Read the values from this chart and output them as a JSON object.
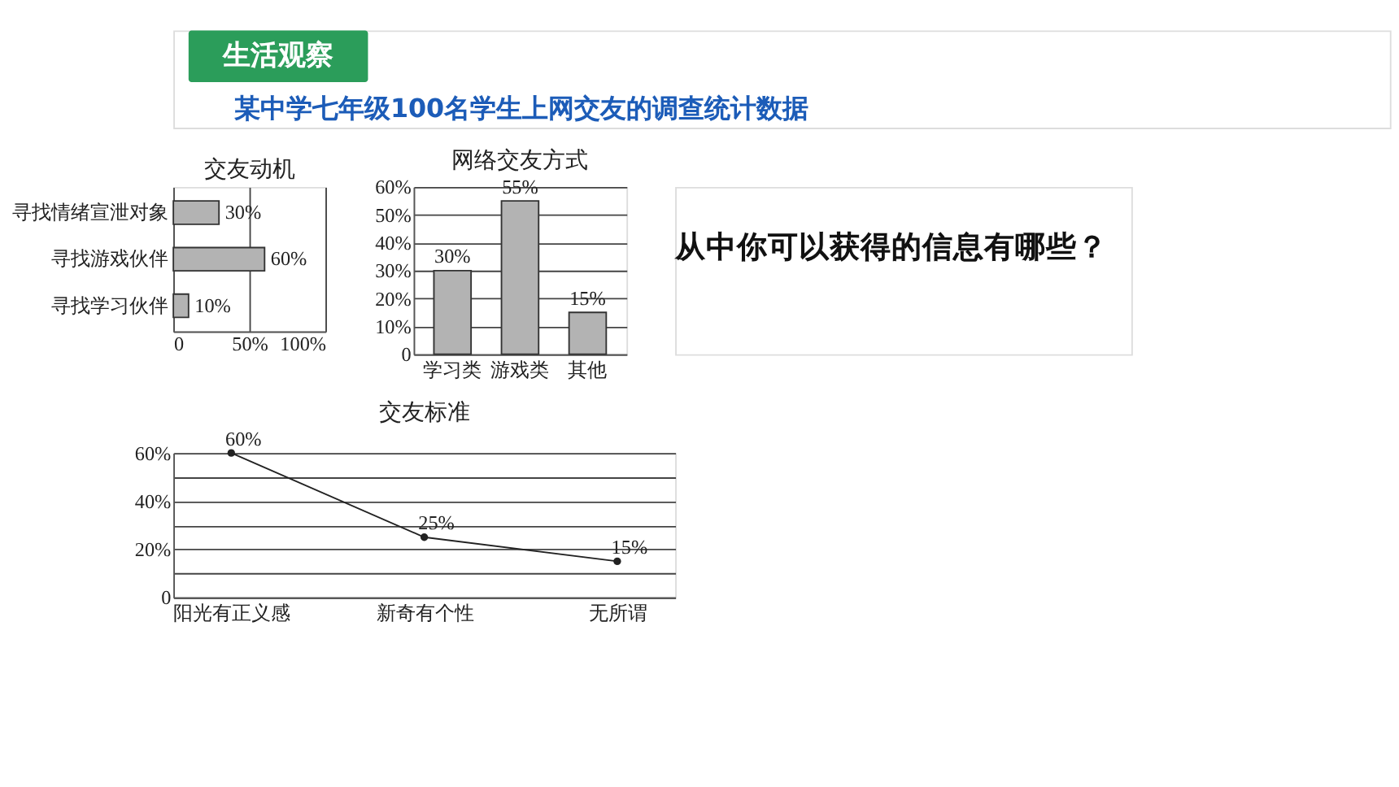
{
  "chart_data": [
    {
      "type": "other",
      "annotations": [
        "生活观察",
        "某中学七年级100名学生上网交友的调查统计数据"
      ]
    },
    {
      "type": "bar",
      "orientation": "horizontal",
      "title": "交友动机",
      "categories": [
        "寻找情绪宣泄对象",
        "寻找游戏伙伴",
        "寻找学习伙伴"
      ],
      "values": [
        30,
        60,
        10
      ],
      "value_labels": [
        "30%",
        "60%",
        "10%"
      ],
      "color": "#b3b3b3",
      "xlim": [
        0,
        100
      ],
      "xticks": [
        0,
        {
          "value": 50,
          "label": "50%"
        },
        {
          "value": 100,
          "label": "100%"
        }
      ],
      "grid": "x"
    },
    {
      "type": "bar",
      "title": "网络交友方式",
      "categories": [
        "学习类",
        "游戏类",
        "其他"
      ],
      "values": [
        30,
        55,
        15
      ],
      "value_labels": [
        "30%",
        "55%",
        "15%"
      ],
      "color": "#b3b3b3",
      "ylim": [
        0,
        60
      ],
      "yticks": [
        0,
        {
          "value": 10,
          "label": "10%"
        },
        {
          "value": 20,
          "label": "20%"
        },
        {
          "value": 30,
          "label": "30%"
        },
        {
          "value": 40,
          "label": "40%"
        },
        {
          "value": 50,
          "label": "50%"
        },
        {
          "value": 60,
          "label": "60%"
        }
      ],
      "grid": "y"
    },
    {
      "type": "other",
      "annotations": [
        "从中你可以获得的信息有哪些？"
      ]
    },
    {
      "type": "line",
      "title": "交友标准",
      "categories": [
        "阳光有正义感",
        "新奇有个性",
        "无所谓"
      ],
      "values": [
        60,
        25,
        15
      ],
      "value_labels": [
        "60%",
        "25%",
        "15%"
      ],
      "color": "#222222",
      "marker": "circle",
      "ylim": [
        0,
        60
      ],
      "yticks": [
        0,
        {
          "value": 10,
          "label": null
        },
        {
          "value": 20,
          "label": "20%"
        },
        {
          "value": 30,
          "label": null
        },
        {
          "value": 40,
          "label": "40%"
        },
        {
          "value": 50,
          "label": null
        },
        {
          "value": 60,
          "label": "60%"
        }
      ],
      "grid": "y"
    }
  ]
}
